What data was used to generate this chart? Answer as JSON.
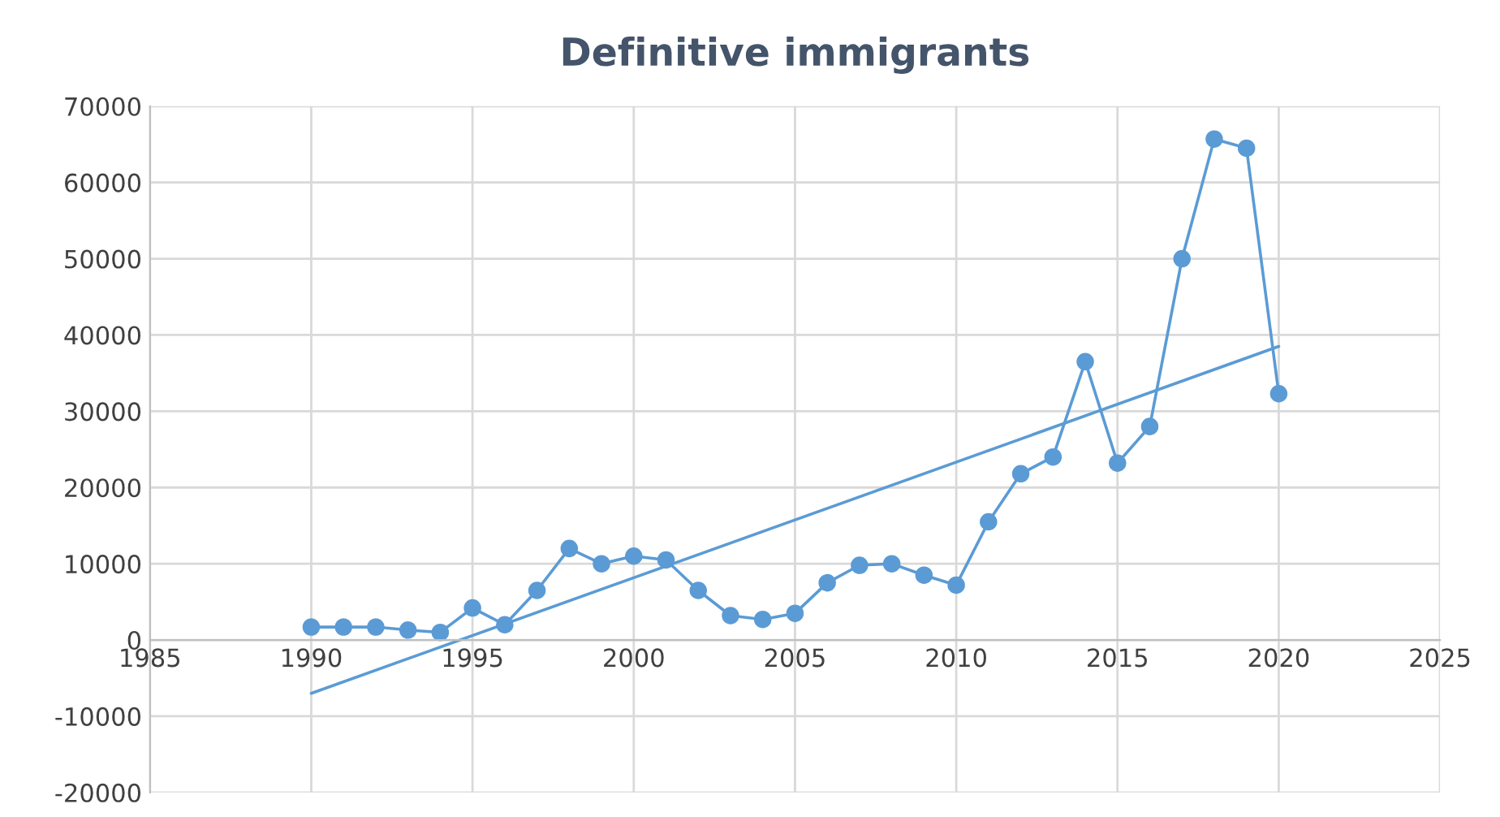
{
  "chart_data": {
    "type": "line",
    "title": "Definitive immigrants",
    "xlim": [
      1985,
      2025
    ],
    "xticks": [
      1985,
      1990,
      1995,
      2000,
      2005,
      2010,
      2015,
      2020,
      2025
    ],
    "ylim": [
      -20000,
      70000
    ],
    "yticks": [
      -20000,
      -10000,
      0,
      10000,
      20000,
      30000,
      40000,
      50000,
      60000,
      70000
    ],
    "grid": true,
    "marker": "circle",
    "line_style": "solid",
    "series": [
      {
        "color": "#5b9bd5",
        "x": [
          1990,
          1991,
          1992,
          1993,
          1994,
          1995,
          1996,
          1997,
          1998,
          1999,
          2000,
          2001,
          2002,
          2003,
          2004,
          2005,
          2006,
          2007,
          2008,
          2009,
          2010,
          2011,
          2012,
          2013,
          2014,
          2015,
          2016,
          2017,
          2018,
          2019,
          2020
        ],
        "values": [
          1700,
          1700,
          1700,
          1300,
          1000,
          4200,
          2000,
          6500,
          12000,
          10000,
          11000,
          10500,
          6500,
          3200,
          2700,
          3500,
          7500,
          9800,
          10000,
          8500,
          7200,
          15500,
          21800,
          24000,
          36500,
          23200,
          28000,
          50000,
          65700,
          64500,
          32300
        ]
      },
      {
        "type": "line",
        "color": "#5b9bd5",
        "marker": "none",
        "x": [
          1990,
          2020
        ],
        "values": [
          -7000,
          38500
        ]
      }
    ]
  }
}
